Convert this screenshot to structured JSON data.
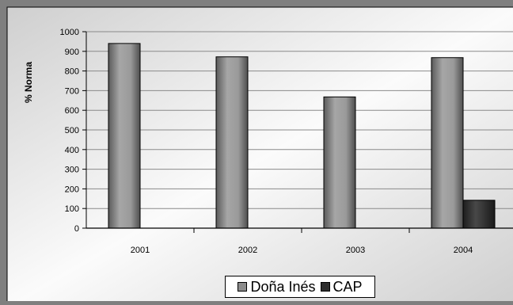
{
  "chart_data": {
    "type": "bar",
    "title": "",
    "xlabel": "",
    "ylabel": "% Norma",
    "ylim": [
      0,
      1000
    ],
    "yticks": [
      0,
      100,
      200,
      300,
      400,
      500,
      600,
      700,
      800,
      900,
      1000
    ],
    "grid": true,
    "legend_position": "bottom",
    "categories": [
      "2001",
      "2002",
      "2003",
      "2004"
    ],
    "series": [
      {
        "name": "Doña Inés",
        "values": [
          940,
          872,
          668,
          868
        ],
        "color": "#8c8c8c"
      },
      {
        "name": "CAP",
        "values": [
          null,
          null,
          null,
          142
        ],
        "color": "#3a3a3a"
      }
    ]
  }
}
